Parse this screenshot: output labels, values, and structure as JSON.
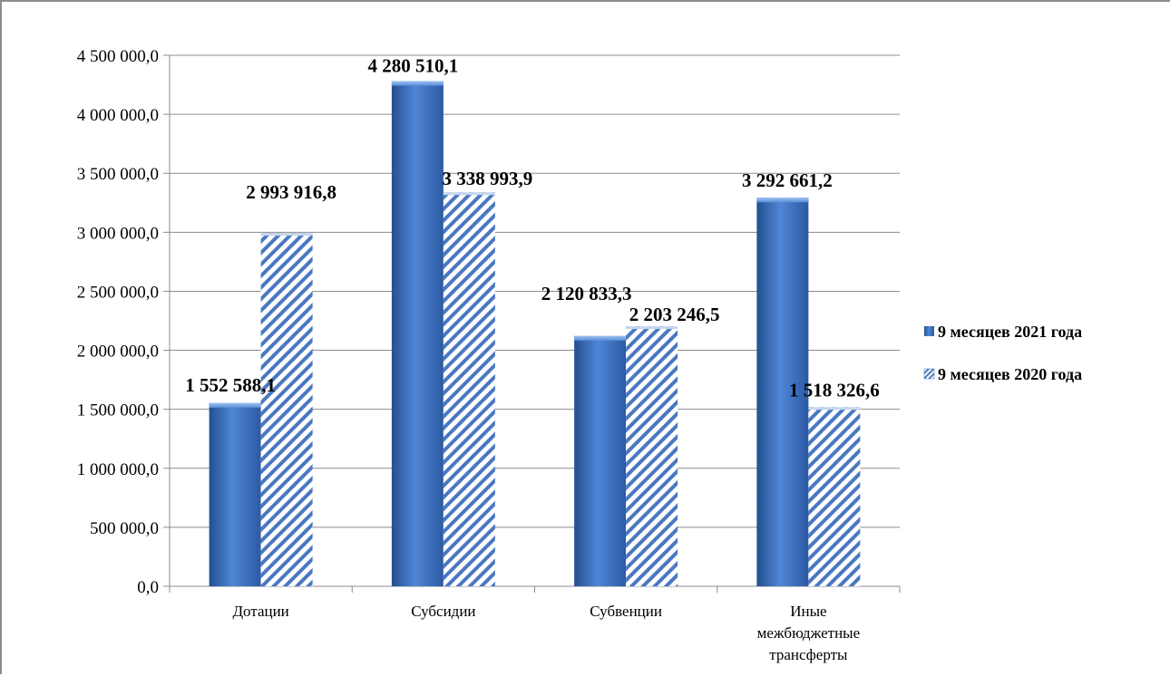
{
  "chart_data": {
    "type": "bar",
    "categories": [
      "Дотации",
      "Субсидии",
      "Субвенции",
      "Иные межбюджетные трансферты"
    ],
    "category_lines": [
      [
        "Дотации"
      ],
      [
        "Субсидии"
      ],
      [
        "Субвенции"
      ],
      [
        "Иные",
        "межбюджетные",
        "трансферты"
      ]
    ],
    "series": [
      {
        "name": "9 месяцев 2021 года",
        "values": [
          1552588.1,
          4280510.1,
          2120833.3,
          3292661.2
        ],
        "labels": [
          "1 552 588,1",
          "4 280 510,1",
          "2 120 833,3",
          "3 292 661,2"
        ],
        "style": "solid",
        "color": "#3c74c4"
      },
      {
        "name": "9 месяцев 2020 года",
        "values": [
          2993916.8,
          3338993.9,
          2203246.5,
          1518326.6
        ],
        "labels": [
          "2 993 916,8",
          "3 338 993,9",
          "2 203 246,5",
          "1 518 326,6"
        ],
        "style": "hatched",
        "color": "#4a78c0"
      }
    ],
    "y_ticks": [
      {
        "value": 0,
        "label": "0,0"
      },
      {
        "value": 500000,
        "label": "500 000,0"
      },
      {
        "value": 1000000,
        "label": "1 000 000,0"
      },
      {
        "value": 1500000,
        "label": "1 500 000,0"
      },
      {
        "value": 2000000,
        "label": "2 000 000,0"
      },
      {
        "value": 2500000,
        "label": "2 500 000,0"
      },
      {
        "value": 3000000,
        "label": "3 000 000,0"
      },
      {
        "value": 3500000,
        "label": "3 500 000,0"
      },
      {
        "value": 4000000,
        "label": "4 000 000,0"
      },
      {
        "value": 4500000,
        "label": "4 500 000,0"
      }
    ],
    "ylim": [
      0,
      4500000
    ],
    "grid": true,
    "legend_position": "right"
  }
}
